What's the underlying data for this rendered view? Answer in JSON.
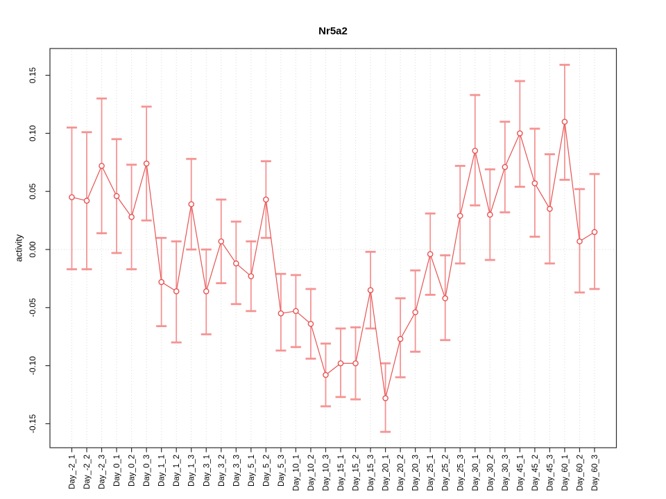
{
  "figure": {
    "title": "Nr5a2",
    "ylabel": "activity"
  },
  "chart_data": {
    "type": "scatter",
    "title": "Nr5a2",
    "xlabel": "",
    "ylabel": "activity",
    "ylim": [
      -0.17,
      0.17
    ],
    "yticks": [
      0.15,
      0.1,
      0.05,
      0.0,
      -0.05,
      -0.1,
      -0.15
    ],
    "ytick_labels": [
      "0.15",
      "0.10",
      "0.05",
      "0.00",
      "-0.05",
      "-0.10",
      "-0.15"
    ],
    "grid": "dotted vertical gridline at every category; dotted horizontal line at y=0",
    "legend": "none",
    "categories": [
      "Day_-2_1",
      "Day_-2_2",
      "Day_-2_3",
      "Day_0_1",
      "Day_0_2",
      "Day_0_3",
      "Day_1_1",
      "Day_1_2",
      "Day_1_3",
      "Day_3_1",
      "Day_3_2",
      "Day_3_3",
      "Day_5_1",
      "Day_5_2",
      "Day_5_3",
      "Day_10_1",
      "Day_10_2",
      "Day_10_3",
      "Day_15_1",
      "Day_15_2",
      "Day_15_3",
      "Day_20_1",
      "Day_20_2",
      "Day_20_3",
      "Day_25_1",
      "Day_25_2",
      "Day_25_3",
      "Day_30_1",
      "Day_30_2",
      "Day_30_3",
      "Day_45_1",
      "Day_45_2",
      "Day_45_3",
      "Day_60_1",
      "Day_60_2",
      "Day_60_3"
    ],
    "series": [
      {
        "name": "activity",
        "marker": "open-circle",
        "values": [
          0.045,
          0.042,
          0.072,
          0.046,
          0.028,
          0.074,
          -0.028,
          -0.036,
          0.039,
          -0.036,
          0.007,
          -0.012,
          -0.023,
          0.043,
          -0.055,
          -0.053,
          -0.064,
          -0.108,
          -0.098,
          -0.098,
          -0.035,
          -0.128,
          -0.077,
          -0.054,
          -0.004,
          -0.042,
          0.029,
          0.085,
          0.03,
          0.071,
          0.1,
          0.057,
          0.035,
          0.11,
          0.007,
          0.015
        ],
        "err_low": [
          -0.017,
          -0.017,
          0.014,
          -0.003,
          -0.017,
          0.025,
          -0.066,
          -0.08,
          0.0,
          -0.073,
          -0.029,
          -0.047,
          -0.053,
          0.01,
          -0.087,
          -0.084,
          -0.094,
          -0.135,
          -0.127,
          -0.129,
          -0.068,
          -0.157,
          -0.11,
          -0.088,
          -0.039,
          -0.078,
          -0.012,
          0.038,
          -0.009,
          0.032,
          0.054,
          0.011,
          -0.012,
          0.06,
          -0.037,
          -0.034
        ],
        "err_high": [
          0.105,
          0.101,
          0.13,
          0.095,
          0.073,
          0.123,
          0.01,
          0.007,
          0.078,
          0.0,
          0.043,
          0.024,
          0.007,
          0.076,
          -0.021,
          -0.022,
          -0.034,
          -0.081,
          -0.068,
          -0.067,
          -0.002,
          -0.098,
          -0.042,
          -0.018,
          0.031,
          -0.005,
          0.072,
          0.133,
          0.069,
          0.11,
          0.145,
          0.104,
          0.082,
          0.159,
          0.052,
          0.065
        ]
      }
    ],
    "colors": {
      "point": "#e65353",
      "line": "#e65353",
      "error_bar": "#f59393",
      "gridline": "#d9d9d9",
      "zero_line": "#d9d9d9",
      "axis": "#2b2b2b"
    }
  }
}
